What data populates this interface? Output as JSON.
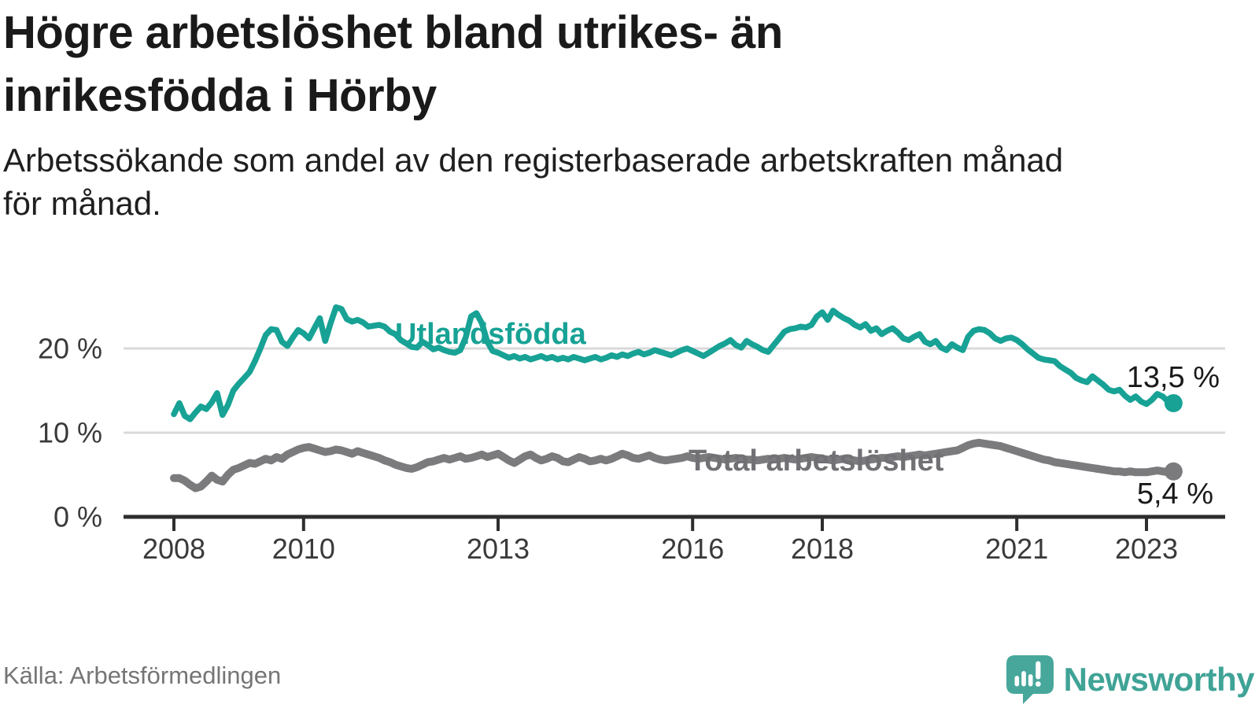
{
  "title": "Högre arbetslöshet bland utrikes- än\ninrikesfödda i Hörby",
  "subtitle": "Arbetssökande som andel av den registerbaserade arbetskraften månad\nför månad.",
  "source": "Källa: Arbetsförmedlingen",
  "branding": {
    "name": "Newsworthy",
    "icon": "newsworthy-speech-bubble-bar-chart-icon",
    "color": "#47a79b"
  },
  "colors": {
    "foreign_born_line": "#17a295",
    "total_line": "#7b7b7e",
    "total_label": "#717175",
    "grid": "#dadada",
    "axis": "#2e2e2e",
    "tick_text": "#3a3a3a",
    "end_label_text": "#1a1a1a"
  },
  "chart_data": {
    "type": "line",
    "x_unit": "monthly",
    "x_start_year": 2008,
    "x_end": "2023-06",
    "x_ticks": [
      "2008",
      "2010",
      "2013",
      "2016",
      "2018",
      "2021",
      "2023"
    ],
    "y_ticks": [
      {
        "value": 0,
        "label": "0 %"
      },
      {
        "value": 10,
        "label": "10 %"
      },
      {
        "value": 20,
        "label": "20 %"
      }
    ],
    "ylim": [
      0,
      26
    ],
    "grid": "horizontal-only",
    "series": [
      {
        "name": "Utlandsfödda",
        "color": "#17a295",
        "end_value": 13.5,
        "end_label": "13,5 %",
        "values": [
          12.2,
          13.5,
          12.0,
          11.6,
          12.4,
          13.1,
          12.8,
          13.6,
          14.7,
          12.1,
          13.3,
          15.0,
          15.8,
          16.5,
          17.2,
          18.5,
          20.0,
          21.6,
          22.3,
          22.2,
          20.8,
          20.3,
          21.3,
          22.2,
          21.8,
          21.2,
          22.4,
          23.6,
          20.9,
          23.0,
          24.9,
          24.7,
          23.5,
          23.2,
          23.4,
          23.1,
          22.6,
          22.7,
          22.8,
          22.6,
          22.0,
          21.7,
          21.0,
          20.6,
          20.2,
          20.1,
          20.8,
          20.4,
          19.9,
          20.1,
          19.8,
          19.6,
          19.5,
          19.8,
          21.3,
          23.8,
          24.2,
          23.0,
          20.8,
          19.7,
          19.5,
          19.2,
          18.9,
          19.1,
          18.8,
          19.0,
          18.7,
          18.9,
          19.1,
          18.8,
          19.0,
          18.7,
          18.9,
          18.7,
          19.0,
          18.8,
          18.6,
          18.8,
          19.0,
          18.7,
          18.9,
          19.2,
          19.0,
          19.3,
          19.1,
          19.4,
          19.6,
          19.3,
          19.5,
          19.8,
          19.6,
          19.4,
          19.2,
          19.5,
          19.8,
          20.0,
          19.7,
          19.4,
          19.1,
          19.5,
          19.9,
          20.3,
          20.6,
          21.0,
          20.4,
          20.1,
          20.9,
          20.5,
          20.2,
          19.8,
          19.6,
          20.4,
          21.2,
          22.0,
          22.3,
          22.4,
          22.6,
          22.5,
          22.8,
          23.8,
          24.3,
          23.4,
          24.5,
          24.0,
          23.6,
          23.3,
          22.8,
          22.5,
          22.9,
          22.1,
          22.4,
          21.7,
          22.1,
          22.4,
          21.9,
          21.2,
          21.0,
          21.4,
          21.7,
          20.8,
          20.5,
          20.9,
          20.1,
          19.8,
          20.5,
          20.1,
          19.8,
          21.4,
          22.1,
          22.3,
          22.2,
          21.8,
          21.2,
          20.9,
          21.2,
          21.3,
          21.0,
          20.5,
          19.9,
          19.4,
          18.9,
          18.7,
          18.6,
          18.5,
          17.9,
          17.5,
          17.1,
          16.5,
          16.2,
          16.0,
          16.7,
          16.2,
          15.7,
          15.1,
          14.9,
          15.1,
          14.4,
          13.9,
          14.3,
          13.7,
          13.4,
          13.9,
          14.6,
          14.3,
          13.7,
          13.5
        ]
      },
      {
        "name": "Total arbetslöshet",
        "color": "#7b7b7e",
        "end_value": 5.4,
        "end_label": "5,4 %",
        "values": [
          4.6,
          4.6,
          4.3,
          3.8,
          3.4,
          3.6,
          4.2,
          4.9,
          4.4,
          4.2,
          5.0,
          5.6,
          5.8,
          6.1,
          6.4,
          6.3,
          6.6,
          6.9,
          6.7,
          7.1,
          6.9,
          7.4,
          7.7,
          8.0,
          8.2,
          8.3,
          8.1,
          7.9,
          7.7,
          7.8,
          8.0,
          7.9,
          7.7,
          7.5,
          7.8,
          7.6,
          7.4,
          7.2,
          7.0,
          6.7,
          6.5,
          6.2,
          6.0,
          5.8,
          5.7,
          5.9,
          6.2,
          6.5,
          6.6,
          6.8,
          7.0,
          6.8,
          7.0,
          7.2,
          6.9,
          7.0,
          7.2,
          7.4,
          7.1,
          7.3,
          7.5,
          7.1,
          6.7,
          6.4,
          6.8,
          7.2,
          7.4,
          7.0,
          6.7,
          6.9,
          7.2,
          7.0,
          6.6,
          6.5,
          6.8,
          7.1,
          6.9,
          6.6,
          6.7,
          6.9,
          6.7,
          6.9,
          7.2,
          7.5,
          7.3,
          7.0,
          6.9,
          7.1,
          7.3,
          7.0,
          6.8,
          6.7,
          6.8,
          6.9,
          7.0,
          7.2,
          7.0,
          6.9,
          7.0,
          7.1,
          7.0,
          6.9,
          6.8,
          6.9,
          7.0,
          6.9,
          6.8,
          6.8,
          6.7,
          6.8,
          6.9,
          6.8,
          6.9,
          7.0,
          6.9,
          6.8,
          6.9,
          7.0,
          7.1,
          7.0,
          6.9,
          6.8,
          6.7,
          6.8,
          6.9,
          6.8,
          6.7,
          6.6,
          6.7,
          6.8,
          6.9,
          7.0,
          7.0,
          7.1,
          7.2,
          7.1,
          7.2,
          7.3,
          7.4,
          7.3,
          7.4,
          7.5,
          7.6,
          7.7,
          7.8,
          7.9,
          8.2,
          8.5,
          8.7,
          8.8,
          8.7,
          8.6,
          8.5,
          8.4,
          8.2,
          8.0,
          7.8,
          7.6,
          7.4,
          7.2,
          7.0,
          6.8,
          6.7,
          6.5,
          6.4,
          6.3,
          6.2,
          6.1,
          6.0,
          5.9,
          5.8,
          5.7,
          5.6,
          5.5,
          5.4,
          5.4,
          5.3,
          5.4,
          5.3,
          5.3,
          5.3,
          5.4,
          5.5,
          5.4,
          5.3,
          5.4
        ]
      }
    ]
  }
}
